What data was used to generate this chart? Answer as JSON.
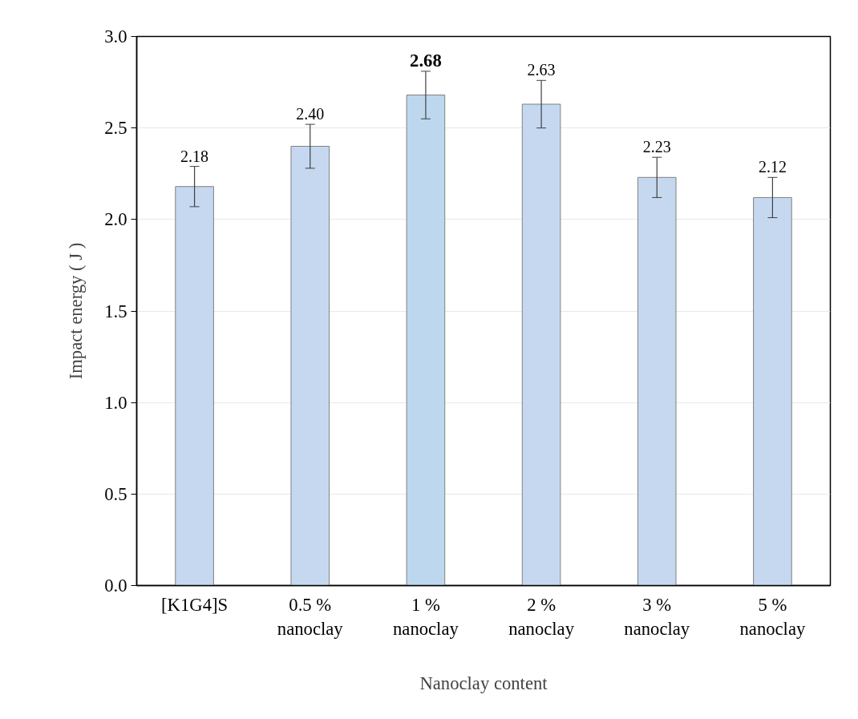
{
  "chart_data": {
    "type": "bar",
    "xlabel": "Nanoclay content",
    "ylabel": "Impact energy ( J )",
    "categories": [
      "[K1G4]S",
      "0.5 %\nnanoclay",
      "1 %\nnanoclay",
      "2 %\nnanoclay",
      "3 %\nnanoclay",
      "5 %\nnanoclay"
    ],
    "values": [
      2.18,
      2.4,
      2.68,
      2.63,
      2.23,
      2.12
    ],
    "colors": [
      "#c5d8ef",
      "#c5d8ef",
      "#bdd7ee",
      "#c5d8ef",
      "#c5d8ef",
      "#c5d8ef"
    ],
    "errors": [
      0.11,
      0.12,
      0.13,
      0.13,
      0.11,
      0.11
    ],
    "value_labels": [
      "2.18",
      "2.40",
      "2.68",
      "2.63",
      "2.23",
      "2.12"
    ],
    "ylim": [
      0,
      3.0
    ],
    "yticks": [
      {
        "value": 0,
        "label": "0.0"
      },
      {
        "value": 0.5,
        "label": "0.5"
      },
      {
        "value": 1,
        "label": "1.0"
      },
      {
        "value": 1.5,
        "label": "1.5"
      },
      {
        "value": 2,
        "label": "2.0"
      },
      {
        "value": 2.5,
        "label": "2.5"
      },
      {
        "value": 3,
        "label": "3.0"
      }
    ],
    "grid": "y"
  }
}
